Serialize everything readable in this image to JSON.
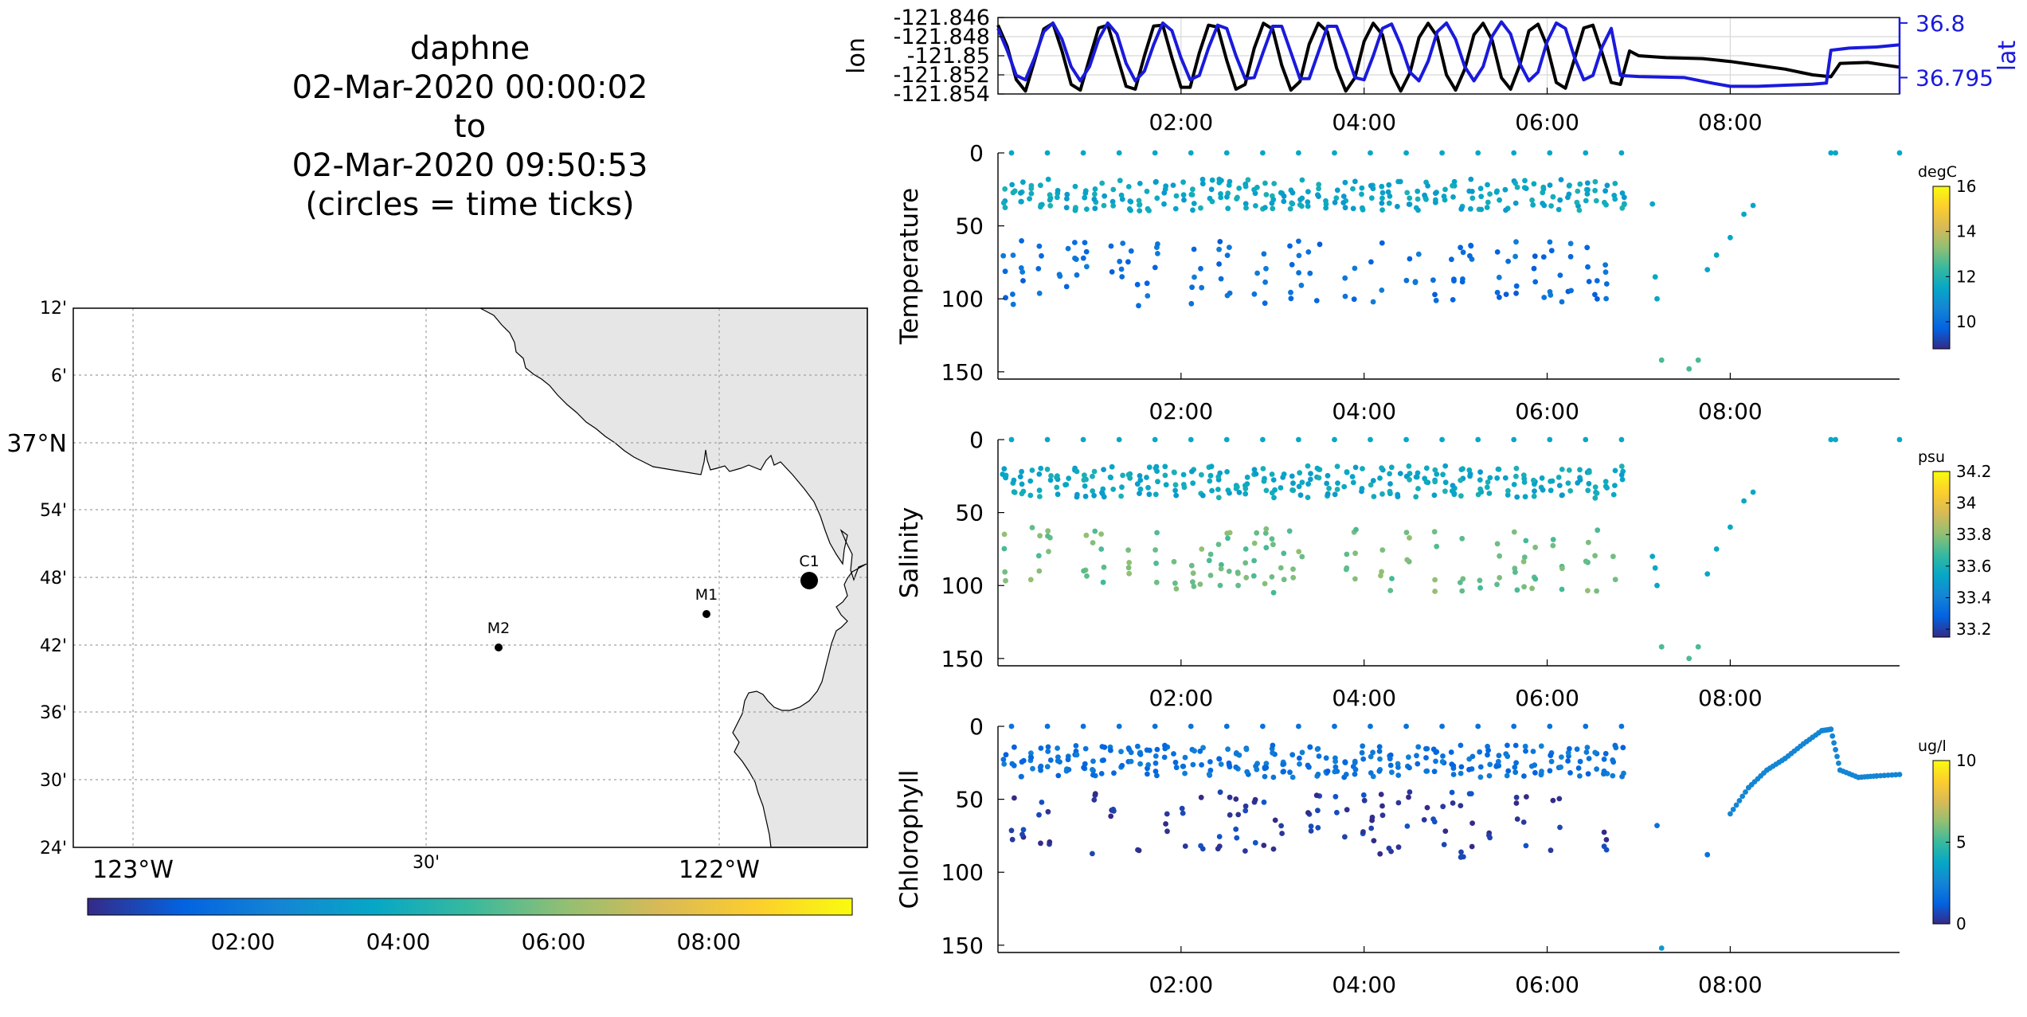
{
  "title": {
    "lines": [
      "daphne",
      "02-Mar-2020 00:00:02",
      "to",
      "02-Mar-2020 09:50:53",
      "(circles = time ticks)"
    ]
  },
  "colors": {
    "lon_line": "#000000",
    "lat_line": "#1a1adc",
    "land": "#e6e6e6",
    "grid": "#a0a0a0",
    "colormap": "parula"
  },
  "map": {
    "lat_tick_labels": [
      "12'",
      "6'",
      "37°N",
      "54'",
      "48'",
      "42'",
      "36'",
      "30'",
      "24'"
    ],
    "lon_tick_labels": [
      "123°W",
      "30'",
      "122°W"
    ],
    "stations": [
      {
        "name": "C1",
        "lon": -121.847,
        "lat": 36.797
      },
      {
        "name": "M1",
        "lon": -122.03,
        "lat": 36.747
      },
      {
        "name": "M2",
        "lon": -122.39,
        "lat": 36.697
      }
    ],
    "colorbar_ticks": [
      "02:00",
      "04:00",
      "06:00",
      "08:00"
    ]
  },
  "chart_data": [
    {
      "type": "line",
      "title": "",
      "xlabel": "",
      "ylabel": "lon",
      "ylabel2": "lat",
      "x_ticks": [
        "02:00",
        "04:00",
        "06:00",
        "08:00"
      ],
      "y_ticks": [
        "-121.846",
        "-121.848",
        "-121.85",
        "-121.852",
        "-121.854"
      ],
      "y2_ticks": [
        "36.8",
        "36.795"
      ],
      "ylim": [
        -121.854,
        -121.846
      ],
      "y2lim": [
        36.7935,
        36.8005
      ],
      "xlim_hours": [
        0,
        9.85
      ],
      "grid": true,
      "series": [
        {
          "name": "lon",
          "axis": "left",
          "color": "#000000",
          "x": [
            0,
            0.1,
            0.2,
            0.3,
            0.4,
            0.5,
            0.6,
            0.7,
            0.8,
            0.9,
            1,
            1.1,
            1.2,
            1.3,
            1.4,
            1.5,
            1.6,
            1.7,
            1.8,
            1.9,
            2,
            2.1,
            2.2,
            2.3,
            2.4,
            2.5,
            2.6,
            2.7,
            2.8,
            2.9,
            3,
            3.1,
            3.2,
            3.3,
            3.4,
            3.5,
            3.6,
            3.7,
            3.8,
            3.9,
            4,
            4.1,
            4.2,
            4.3,
            4.4,
            4.5,
            4.6,
            4.7,
            4.8,
            4.9,
            5,
            5.1,
            5.2,
            5.3,
            5.4,
            5.5,
            5.6,
            5.7,
            5.8,
            5.9,
            6,
            6.1,
            6.2,
            6.3,
            6.4,
            6.5,
            6.6,
            6.7,
            6.8,
            6.9,
            7.0,
            7.3,
            7.7,
            8.0,
            8.3,
            8.6,
            8.9,
            9.1,
            9.2,
            9.5,
            9.85
          ],
          "y": [
            -121.8468,
            -121.849,
            -121.8525,
            -121.8537,
            -121.8505,
            -121.8472,
            -121.8466,
            -121.8495,
            -121.853,
            -121.8536,
            -121.8503,
            -121.8471,
            -121.8468,
            -121.85,
            -121.8532,
            -121.8535,
            -121.85,
            -121.8469,
            -121.8468,
            -121.8502,
            -121.8533,
            -121.8533,
            -121.8497,
            -121.8468,
            -121.847,
            -121.8505,
            -121.8535,
            -121.853,
            -121.8492,
            -121.8466,
            -121.8472,
            -121.851,
            -121.8536,
            -121.8527,
            -121.8488,
            -121.8466,
            -121.8475,
            -121.8513,
            -121.8537,
            -121.8523,
            -121.8485,
            -121.8466,
            -121.8478,
            -121.8518,
            -121.8537,
            -121.8518,
            -121.8481,
            -121.8466,
            -121.848,
            -121.852,
            -121.8536,
            -121.8514,
            -121.8478,
            -121.8466,
            -121.8484,
            -121.8523,
            -121.8535,
            -121.851,
            -121.8474,
            -121.8467,
            -121.849,
            -121.8528,
            -121.8534,
            -121.8503,
            -121.8471,
            -121.8468,
            -121.8497,
            -121.8528,
            -121.853,
            -121.8495,
            -121.85,
            -121.8502,
            -121.8503,
            -121.8506,
            -121.851,
            -121.8514,
            -121.852,
            -121.8522,
            -121.8508,
            -121.8507,
            -121.8512
          ]
        },
        {
          "name": "lat",
          "axis": "right",
          "color": "#1a1adc",
          "x": [
            0,
            0.1,
            0.2,
            0.3,
            0.4,
            0.5,
            0.6,
            0.7,
            0.8,
            0.9,
            1,
            1.1,
            1.2,
            1.3,
            1.4,
            1.5,
            1.6,
            1.7,
            1.8,
            1.9,
            2,
            2.1,
            2.2,
            2.3,
            2.4,
            2.5,
            2.6,
            2.7,
            2.8,
            2.9,
            3,
            3.1,
            3.2,
            3.3,
            3.4,
            3.5,
            3.6,
            3.7,
            3.8,
            3.9,
            4,
            4.1,
            4.2,
            4.3,
            4.4,
            4.5,
            4.6,
            4.7,
            4.8,
            4.9,
            5,
            5.1,
            5.2,
            5.3,
            5.4,
            5.5,
            5.6,
            5.7,
            5.8,
            5.9,
            6,
            6.1,
            6.2,
            6.3,
            6.4,
            6.5,
            6.6,
            6.7,
            6.8,
            7.0,
            7.5,
            7.8,
            8.0,
            8.3,
            8.6,
            8.9,
            9.05,
            9.1,
            9.3,
            9.6,
            9.85
          ],
          "y": [
            36.7995,
            36.7975,
            36.7952,
            36.7948,
            36.7968,
            36.7992,
            36.8,
            36.7985,
            36.796,
            36.7947,
            36.796,
            36.7985,
            36.8,
            36.799,
            36.7963,
            36.7947,
            36.7956,
            36.798,
            36.8,
            36.7993,
            36.7968,
            36.7948,
            36.7952,
            36.7977,
            36.7998,
            36.7995,
            36.797,
            36.7949,
            36.795,
            36.7974,
            36.7997,
            36.7997,
            36.7973,
            36.7949,
            36.7949,
            36.7973,
            36.7997,
            36.7997,
            36.7975,
            36.795,
            36.7948,
            36.797,
            36.7995,
            36.7999,
            36.798,
            36.7955,
            36.7947,
            36.7965,
            36.7992,
            36.8,
            36.7985,
            36.796,
            36.7947,
            36.796,
            36.7988,
            36.8001,
            36.799,
            36.7963,
            36.7947,
            36.7955,
            36.7983,
            36.8,
            36.7995,
            36.7968,
            36.7948,
            36.7952,
            36.7978,
            36.7995,
            36.7952,
            36.7951,
            36.795,
            36.7945,
            36.7942,
            36.7942,
            36.7943,
            36.7944,
            36.7945,
            36.7975,
            36.7977,
            36.7978,
            36.798
          ]
        }
      ]
    },
    {
      "type": "scatter",
      "title": "",
      "xlabel": "",
      "ylabel": "Temperature",
      "x_ticks": [
        "02:00",
        "04:00",
        "06:00",
        "08:00"
      ],
      "y_ticks": [
        "0",
        "50",
        "100",
        "150"
      ],
      "ylim": [
        0,
        155
      ],
      "y_reversed": true,
      "colorbar": {
        "unit": "degC",
        "range": [
          8.8,
          16
        ],
        "ticks": [
          "16",
          "14",
          "12",
          "10"
        ]
      },
      "profile": {
        "shallow": {
          "depth": 30,
          "value": 11.5
        },
        "deep": {
          "depth": 95,
          "value": 10.0
        }
      },
      "extra_points": [
        {
          "x": 7.15,
          "depth": 35
        },
        {
          "x": 7.18,
          "depth": 85
        },
        {
          "x": 7.2,
          "depth": 100
        },
        {
          "x": 7.25,
          "depth": 142
        },
        {
          "x": 7.55,
          "depth": 148
        },
        {
          "x": 7.65,
          "depth": 142
        },
        {
          "x": 7.75,
          "depth": 80
        },
        {
          "x": 7.85,
          "depth": 70
        },
        {
          "x": 8.0,
          "depth": 58
        },
        {
          "x": 8.15,
          "depth": 42
        },
        {
          "x": 8.25,
          "depth": 36
        },
        {
          "x": 9.1,
          "depth": 0
        },
        {
          "x": 9.15,
          "depth": 0
        },
        {
          "x": 9.85,
          "depth": 0
        }
      ]
    },
    {
      "type": "scatter",
      "title": "",
      "xlabel": "",
      "ylabel": "Salinity",
      "x_ticks": [
        "02:00",
        "04:00",
        "06:00",
        "08:00"
      ],
      "y_ticks": [
        "0",
        "50",
        "100",
        "150"
      ],
      "ylim": [
        0,
        155
      ],
      "y_reversed": true,
      "colorbar": {
        "unit": "psu",
        "range": [
          33.15,
          34.2
        ],
        "ticks": [
          "34.2",
          "34",
          "33.8",
          "33.6",
          "33.4",
          "33.2"
        ]
      },
      "profile": {
        "shallow": {
          "depth": 30,
          "value": 33.55
        },
        "deep": {
          "depth": 95,
          "value": 33.75
        }
      },
      "extra_points": [
        {
          "x": 7.15,
          "depth": 80
        },
        {
          "x": 7.18,
          "depth": 88
        },
        {
          "x": 7.2,
          "depth": 100
        },
        {
          "x": 7.25,
          "depth": 142
        },
        {
          "x": 7.55,
          "depth": 150
        },
        {
          "x": 7.65,
          "depth": 142
        },
        {
          "x": 7.75,
          "depth": 92
        },
        {
          "x": 7.85,
          "depth": 75
        },
        {
          "x": 8.0,
          "depth": 60
        },
        {
          "x": 8.15,
          "depth": 42
        },
        {
          "x": 8.25,
          "depth": 36
        },
        {
          "x": 9.1,
          "depth": 0
        },
        {
          "x": 9.15,
          "depth": 0
        },
        {
          "x": 9.85,
          "depth": 0
        }
      ]
    },
    {
      "type": "scatter",
      "title": "",
      "xlabel": "",
      "ylabel": "Chlorophyll",
      "x_ticks": [
        "02:00",
        "04:00",
        "06:00",
        "08:00"
      ],
      "y_ticks": [
        "0",
        "50",
        "100",
        "150"
      ],
      "ylim": [
        0,
        155
      ],
      "y_reversed": true,
      "colorbar": {
        "unit": "ug/l",
        "range": [
          0,
          10
        ],
        "ticks": [
          "10",
          "5",
          "0"
        ]
      },
      "profile": {
        "shallow": {
          "depth": 25,
          "value": 1.8
        },
        "deep": {
          "depth": 80,
          "value": 0.4
        }
      },
      "tail": {
        "x": [
          8.0,
          8.2,
          8.4,
          8.6,
          8.8,
          9.0,
          9.1,
          9.2,
          9.4,
          9.6,
          9.85
        ],
        "depth": [
          60,
          42,
          30,
          22,
          12,
          3,
          2,
          30,
          35,
          34,
          33
        ],
        "value": 2.5
      },
      "extra_points": [
        {
          "x": 7.2,
          "depth": 68
        },
        {
          "x": 7.25,
          "depth": 152
        },
        {
          "x": 7.75,
          "depth": 88
        }
      ]
    }
  ]
}
